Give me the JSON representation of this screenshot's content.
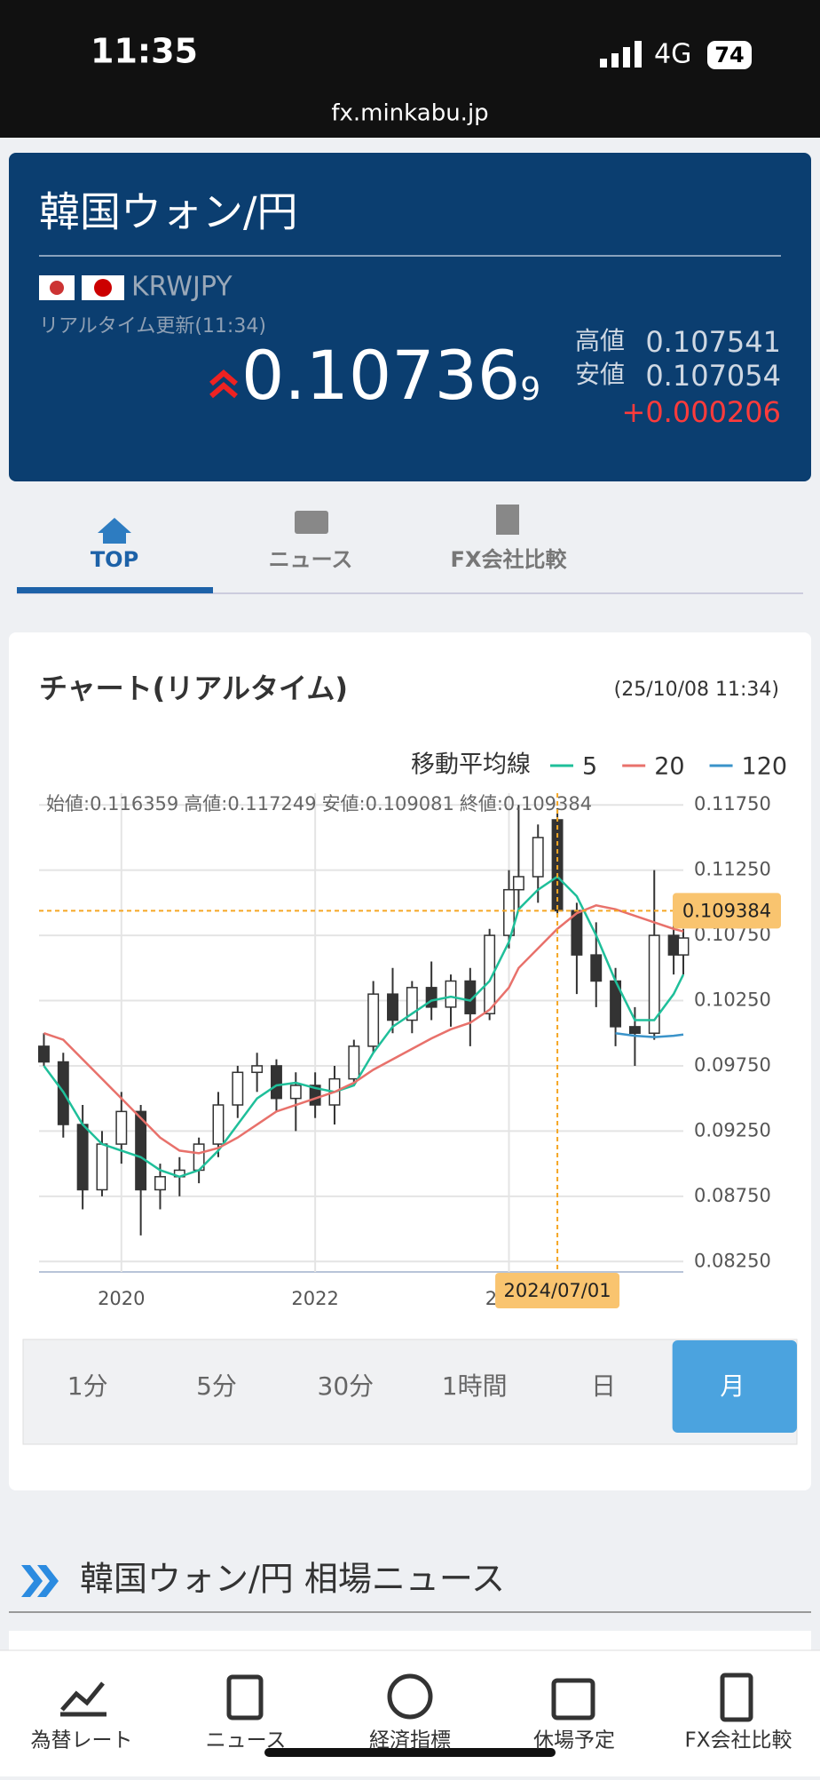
{
  "status": {
    "time": "11:35",
    "network": "4G",
    "battery": "74"
  },
  "url": "fx.minkabu.jp",
  "header": {
    "title": "韓国ウォン/円",
    "code": "KRWJPY",
    "updated": "リアルタイム更新(11:34)",
    "price_main": "0.10736",
    "price_last": "9",
    "high_label": "高値",
    "high": "0.107541",
    "low_label": "安値",
    "low": "0.107054",
    "change": "+0.000206"
  },
  "tabs": [
    "TOP",
    "ニュース",
    "FX会社比較"
  ],
  "chart_data": {
    "type": "candlestick",
    "title": "チャート(リアルタイム)",
    "timestamp": "(25/10/08 11:34)",
    "legend_title": "移動平均線",
    "ohlc_header": [
      "始値:0.116359",
      "高値:0.117249",
      "安値:0.109081",
      "終値:0.109384"
    ],
    "x": [
      2019.2,
      2019.4,
      2019.6,
      2019.8,
      2020.0,
      2020.2,
      2020.4,
      2020.6,
      2020.8,
      2021.0,
      2021.2,
      2021.4,
      2021.6,
      2021.8,
      2022.0,
      2022.2,
      2022.4,
      2022.6,
      2022.8,
      2023.0,
      2023.2,
      2023.4,
      2023.6,
      2023.8,
      2024.0,
      2024.1,
      2024.3,
      2024.5,
      2024.7,
      2024.9,
      2025.1,
      2025.3,
      2025.5,
      2025.7,
      2025.8
    ],
    "open": [
      0.099,
      0.0978,
      0.093,
      0.088,
      0.0915,
      0.094,
      0.088,
      0.089,
      0.0895,
      0.0915,
      0.0945,
      0.097,
      0.0975,
      0.095,
      0.096,
      0.0945,
      0.0965,
      0.099,
      0.103,
      0.101,
      0.1035,
      0.102,
      0.104,
      0.1015,
      0.1075,
      0.111,
      0.112,
      0.116359,
      0.1094,
      0.106,
      0.104,
      0.1005,
      0.1,
      0.1075,
      0.106
    ],
    "high": [
      0.1,
      0.0985,
      0.0945,
      0.0925,
      0.0955,
      0.0945,
      0.09,
      0.0905,
      0.092,
      0.0955,
      0.0975,
      0.0985,
      0.098,
      0.097,
      0.097,
      0.0975,
      0.0995,
      0.104,
      0.105,
      0.104,
      0.1055,
      0.1045,
      0.105,
      0.108,
      0.1125,
      0.1175,
      0.116,
      0.117249,
      0.11,
      0.1085,
      0.105,
      0.102,
      0.1125,
      0.1085,
      0.108
    ],
    "low": [
      0.0975,
      0.092,
      0.0865,
      0.0875,
      0.09,
      0.0845,
      0.0865,
      0.0875,
      0.0885,
      0.0905,
      0.0935,
      0.0955,
      0.094,
      0.0925,
      0.0935,
      0.093,
      0.096,
      0.0985,
      0.1,
      0.1,
      0.101,
      0.1005,
      0.099,
      0.101,
      0.1065,
      0.1095,
      0.11,
      0.109081,
      0.103,
      0.102,
      0.099,
      0.0975,
      0.0995,
      0.1045,
      0.1045
    ],
    "close": [
      0.0978,
      0.093,
      0.088,
      0.0915,
      0.094,
      0.088,
      0.089,
      0.0895,
      0.0915,
      0.0945,
      0.097,
      0.0975,
      0.095,
      0.096,
      0.0945,
      0.0965,
      0.099,
      0.103,
      0.101,
      0.1035,
      0.102,
      0.104,
      0.1015,
      0.1075,
      0.111,
      0.112,
      0.115,
      0.109384,
      0.106,
      0.104,
      0.1005,
      0.1,
      0.1075,
      0.106,
      0.1073
    ],
    "series": [
      {
        "name": "5",
        "color": "#1fbf9a",
        "values": [
          0.0975,
          0.0955,
          0.093,
          0.0915,
          0.091,
          0.0905,
          0.0895,
          0.089,
          0.0895,
          0.091,
          0.093,
          0.095,
          0.096,
          0.0962,
          0.0958,
          0.0955,
          0.096,
          0.0985,
          0.1005,
          0.1015,
          0.1025,
          0.1028,
          0.1025,
          0.104,
          0.107,
          0.1095,
          0.111,
          0.112,
          0.1105,
          0.1075,
          0.104,
          0.101,
          0.101,
          0.103,
          0.1045
        ]
      },
      {
        "name": "20",
        "color": "#e8716b",
        "values": [
          0.1,
          0.0995,
          0.098,
          0.0965,
          0.095,
          0.0935,
          0.092,
          0.091,
          0.0908,
          0.0912,
          0.092,
          0.093,
          0.094,
          0.0945,
          0.095,
          0.0955,
          0.0962,
          0.0972,
          0.098,
          0.0988,
          0.0996,
          0.1003,
          0.1008,
          0.1018,
          0.1035,
          0.105,
          0.1065,
          0.108,
          0.1092,
          0.1098,
          0.1095,
          0.109,
          0.1085,
          0.108,
          0.1078
        ]
      },
      {
        "name": "120",
        "color": "#3a93c9",
        "values": [
          null,
          null,
          null,
          null,
          null,
          null,
          null,
          null,
          null,
          null,
          null,
          null,
          null,
          null,
          null,
          null,
          null,
          null,
          null,
          null,
          null,
          null,
          null,
          null,
          null,
          null,
          null,
          null,
          null,
          null,
          0.1,
          0.0998,
          0.0997,
          0.0998,
          0.0999
        ]
      }
    ],
    "xlim": [
      2019.15,
      2025.8
    ],
    "ylim": [
      0.0817,
      0.1184
    ],
    "xticks": [
      2020,
      2022,
      2024
    ],
    "yticks": [
      {
        "value": 0.1175,
        "label": "0.11750"
      },
      {
        "value": 0.1125,
        "label": "0.11250"
      },
      {
        "value": 0.1075,
        "label": "0.10750"
      },
      {
        "value": 0.1025,
        "label": "0.10250"
      },
      {
        "value": 0.0975,
        "label": "0.09750"
      },
      {
        "value": 0.0925,
        "label": "0.09250"
      },
      {
        "value": 0.0875,
        "label": "0.08750"
      },
      {
        "value": 0.0825,
        "label": "0.08250"
      }
    ],
    "grid": true,
    "crosshair": {
      "x": 2024.5,
      "date": "2024/07/01",
      "price": 0.109384
    }
  },
  "timeframes": [
    "1分",
    "5分",
    "30分",
    "1時間",
    "日",
    "月"
  ],
  "selected_timeframe": 5,
  "news_title": "韓国ウォン/円 相場ニュース",
  "nav": [
    "為替レート",
    "ニュース",
    "経済指標",
    "休場予定",
    "FX会社比較"
  ]
}
